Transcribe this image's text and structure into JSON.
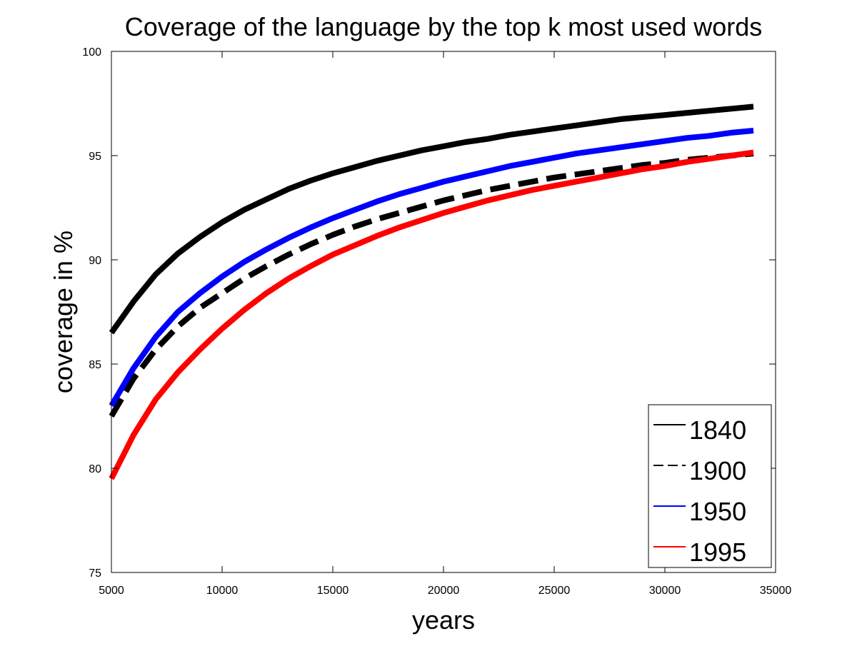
{
  "chart_data": {
    "type": "line",
    "title": "Coverage of the language by the top k most used words",
    "xlabel": "years",
    "ylabel": "coverage in %",
    "xlim": [
      5000,
      35000
    ],
    "ylim": [
      75,
      100
    ],
    "xticks": [
      5000,
      10000,
      15000,
      20000,
      25000,
      30000,
      35000
    ],
    "yticks": [
      75,
      80,
      85,
      90,
      95,
      100
    ],
    "grid": false,
    "legend_position": "bottom-right",
    "x": [
      5000,
      6000,
      7000,
      8000,
      9000,
      10000,
      11000,
      12000,
      13000,
      14000,
      15000,
      16000,
      17000,
      18000,
      19000,
      20000,
      21000,
      22000,
      23000,
      24000,
      25000,
      26000,
      27000,
      28000,
      29000,
      30000,
      31000,
      32000,
      33000,
      34000
    ],
    "series": [
      {
        "name": "1840",
        "color": "#000000",
        "line_style": "solid",
        "values": [
          86.5,
          88.0,
          89.3,
          90.3,
          91.1,
          91.8,
          92.4,
          92.9,
          93.4,
          93.8,
          94.15,
          94.45,
          94.75,
          95.0,
          95.25,
          95.45,
          95.65,
          95.8,
          96.0,
          96.15,
          96.3,
          96.45,
          96.6,
          96.75,
          96.85,
          96.95,
          97.05,
          97.15,
          97.25,
          97.35
        ]
      },
      {
        "name": "1900",
        "color": "#000000",
        "line_style": "dashed",
        "values": [
          82.5,
          84.3,
          85.7,
          86.8,
          87.7,
          88.4,
          89.1,
          89.7,
          90.25,
          90.75,
          91.2,
          91.6,
          91.95,
          92.25,
          92.55,
          92.85,
          93.1,
          93.35,
          93.55,
          93.75,
          93.95,
          94.1,
          94.25,
          94.4,
          94.55,
          94.65,
          94.8,
          94.9,
          95.0,
          95.1
        ]
      },
      {
        "name": "1950",
        "color": "#0000ff",
        "line_style": "solid",
        "values": [
          83.0,
          84.8,
          86.3,
          87.5,
          88.4,
          89.2,
          89.9,
          90.5,
          91.05,
          91.55,
          92.0,
          92.4,
          92.8,
          93.15,
          93.45,
          93.75,
          94.0,
          94.25,
          94.5,
          94.7,
          94.9,
          95.1,
          95.25,
          95.4,
          95.55,
          95.7,
          95.85,
          95.95,
          96.1,
          96.2
        ]
      },
      {
        "name": "1995",
        "color": "#ff0000",
        "line_style": "solid",
        "values": [
          79.5,
          81.6,
          83.3,
          84.6,
          85.7,
          86.7,
          87.6,
          88.4,
          89.1,
          89.7,
          90.25,
          90.7,
          91.15,
          91.55,
          91.9,
          92.25,
          92.55,
          92.85,
          93.1,
          93.35,
          93.55,
          93.75,
          93.95,
          94.15,
          94.35,
          94.5,
          94.7,
          94.85,
          95.0,
          95.15
        ]
      }
    ]
  }
}
